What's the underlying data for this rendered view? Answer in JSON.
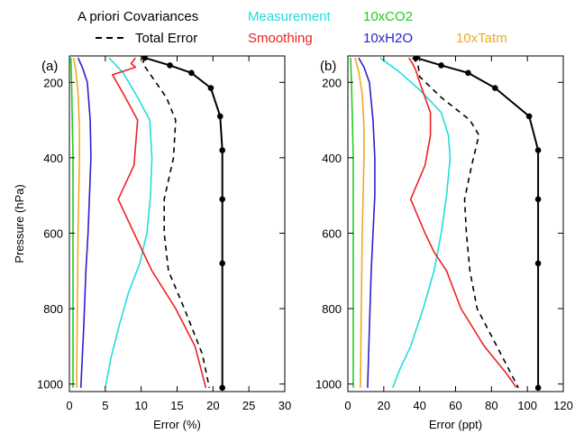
{
  "legend": {
    "apriori_label": "A priori Covariances",
    "total_error_label": "Total Error",
    "measurement_label": "Measurement",
    "smoothing_label": "Smoothing",
    "co2_label": "10xCO2",
    "h2o_label": "10xH2O",
    "tatm_label": "10xTatm"
  },
  "colors": {
    "apriori": "#000000",
    "total_error": "#000000",
    "measurement": "#22dde0",
    "smoothing": "#ee2222",
    "co2": "#22cc22",
    "h2o": "#2a22cc",
    "tatm": "#eeaa22"
  },
  "chart_data": [
    {
      "type": "line",
      "panel_label": "(a)",
      "xlabel": "Error (%)",
      "ylabel": "Pressure (hPa)",
      "xlim": [
        0,
        30
      ],
      "ylim": [
        1020,
        130
      ],
      "xticks": [
        0,
        5,
        10,
        15,
        20,
        25,
        30
      ],
      "yticks": [
        200,
        400,
        600,
        800,
        1000
      ],
      "series": [
        {
          "name": "A priori Covariances",
          "key": "apriori",
          "style": "solid-markers",
          "x": [
            10.5,
            14,
            17,
            19.7,
            21,
            21.3,
            21.3,
            21.3,
            21.3
          ],
          "y": [
            135,
            155,
            175,
            215,
            290,
            380,
            510,
            680,
            1010
          ]
        },
        {
          "name": "Total Error",
          "key": "total_error",
          "style": "dashed",
          "x": [
            10.5,
            10.2,
            11.5,
            13.5,
            14.8,
            14.5,
            13.2,
            13.2,
            13.8,
            16,
            18.5,
            19.5
          ],
          "y": [
            135,
            150,
            185,
            240,
            300,
            400,
            510,
            600,
            700,
            800,
            920,
            1010
          ]
        },
        {
          "name": "Measurement",
          "key": "measurement",
          "style": "solid",
          "x": [
            5.5,
            7.5,
            9.5,
            11.2,
            11.5,
            11.3,
            10.8,
            9.8,
            8.2,
            7.0,
            5.8,
            5.0
          ],
          "y": [
            135,
            175,
            240,
            300,
            400,
            500,
            600,
            680,
            760,
            840,
            930,
            1010
          ]
        },
        {
          "name": "Smoothing",
          "key": "smoothing",
          "style": "solid",
          "x": [
            9.2,
            8.6,
            9.2,
            6.0,
            7.5,
            9.5,
            9.0,
            6.8,
            9.0,
            11.5,
            14.8,
            17.5,
            19.0
          ],
          "y": [
            135,
            150,
            160,
            180,
            230,
            300,
            420,
            510,
            600,
            700,
            800,
            900,
            1010
          ]
        },
        {
          "name": "10xH2O",
          "key": "h2o",
          "style": "solid",
          "x": [
            1.2,
            1.8,
            2.5,
            2.9,
            3.0,
            2.8,
            2.6,
            2.3,
            2.0,
            1.6
          ],
          "y": [
            135,
            160,
            200,
            300,
            400,
            500,
            600,
            700,
            850,
            1010
          ]
        },
        {
          "name": "10xTatm",
          "key": "tatm",
          "style": "solid",
          "x": [
            0.6,
            0.9,
            1.2,
            1.4,
            1.4,
            1.3,
            1.2,
            1.1,
            1.0
          ],
          "y": [
            135,
            170,
            230,
            320,
            400,
            500,
            600,
            800,
            1010
          ]
        },
        {
          "name": "10xCO2",
          "key": "co2",
          "style": "solid",
          "x": [
            0.2,
            0.3,
            0.4,
            0.5,
            0.5,
            0.5,
            0.5,
            0.5
          ],
          "y": [
            135,
            200,
            300,
            400,
            500,
            600,
            800,
            1010
          ]
        }
      ]
    },
    {
      "type": "line",
      "panel_label": "(b)",
      "xlabel": "Error (ppt)",
      "ylabel": "",
      "xlim": [
        0,
        120
      ],
      "ylim": [
        1020,
        130
      ],
      "xticks": [
        0,
        20,
        40,
        60,
        80,
        100,
        120
      ],
      "yticks": [
        200,
        400,
        600,
        800,
        1000
      ],
      "series": [
        {
          "name": "A priori Covariances",
          "key": "apriori",
          "style": "solid-markers",
          "x": [
            38,
            52,
            67,
            82,
            101,
            106,
            106,
            106,
            106
          ],
          "y": [
            135,
            155,
            175,
            215,
            290,
            380,
            510,
            680,
            1010
          ]
        },
        {
          "name": "Total Error",
          "key": "total_error",
          "style": "dashed",
          "x": [
            36,
            39,
            40,
            52,
            68,
            73,
            69,
            65,
            66,
            68,
            72,
            83,
            95
          ],
          "y": [
            135,
            150,
            185,
            240,
            300,
            340,
            420,
            510,
            600,
            700,
            800,
            900,
            1010
          ]
        },
        {
          "name": "Measurement",
          "key": "measurement",
          "style": "solid",
          "x": [
            18,
            28,
            40,
            52,
            56,
            57,
            55,
            52,
            48,
            42,
            35,
            29,
            25
          ],
          "y": [
            135,
            170,
            220,
            280,
            340,
            400,
            500,
            600,
            700,
            800,
            900,
            960,
            1010
          ]
        },
        {
          "name": "Smoothing",
          "key": "smoothing",
          "style": "solid",
          "x": [
            34,
            36,
            38,
            40,
            46,
            46,
            43,
            35,
            43,
            48,
            55,
            63,
            76,
            88,
            94
          ],
          "y": [
            135,
            150,
            170,
            200,
            280,
            340,
            420,
            510,
            600,
            650,
            700,
            800,
            900,
            970,
            1010
          ]
        },
        {
          "name": "10xH2O",
          "key": "h2o",
          "style": "solid",
          "x": [
            6,
            9,
            12,
            14,
            15,
            15,
            14,
            13,
            12,
            11
          ],
          "y": [
            135,
            160,
            200,
            300,
            400,
            500,
            600,
            700,
            850,
            1010
          ]
        },
        {
          "name": "10xTatm",
          "key": "tatm",
          "style": "solid",
          "x": [
            4,
            6,
            8,
            9,
            9,
            8.5,
            8,
            7.5,
            7
          ],
          "y": [
            135,
            170,
            230,
            320,
            400,
            500,
            600,
            800,
            1010
          ]
        },
        {
          "name": "10xCO2",
          "key": "co2",
          "style": "solid",
          "x": [
            1.5,
            2,
            2.5,
            3,
            3,
            3,
            3,
            3
          ],
          "y": [
            135,
            200,
            300,
            400,
            500,
            600,
            800,
            1010
          ]
        }
      ]
    }
  ]
}
